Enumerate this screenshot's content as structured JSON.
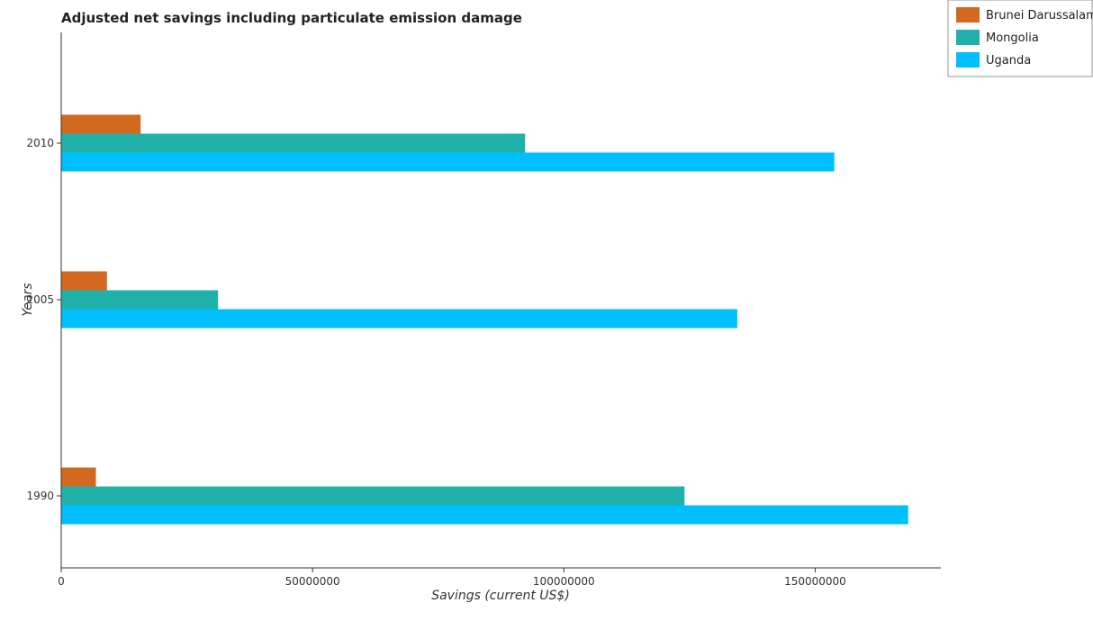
{
  "chart_data": {
    "type": "bar",
    "orientation": "horizontal",
    "title": "Adjusted net savings including particulate emission damage",
    "xlabel": "Savings (current US$)",
    "ylabel": "Years",
    "categories": [
      "1990",
      "2005",
      "2010"
    ],
    "xlim": [
      0,
      175000000
    ],
    "xticks": [
      0,
      50000000,
      100000000,
      150000000
    ],
    "xtick_labels": [
      "0",
      "50000000",
      "100000000",
      "150000000"
    ],
    "grid": false,
    "legend_position": "top-right",
    "series": [
      {
        "name": "Brunei Darussalam",
        "color": "#d2691e",
        "values": [
          6900000,
          9100000,
          15800000
        ]
      },
      {
        "name": "Mongolia",
        "color": "#20b2aa",
        "values": [
          124000000,
          31200000,
          92300000
        ]
      },
      {
        "name": "Uganda",
        "color": "#00bfff",
        "values": [
          168500000,
          134500000,
          153800000
        ]
      }
    ]
  }
}
